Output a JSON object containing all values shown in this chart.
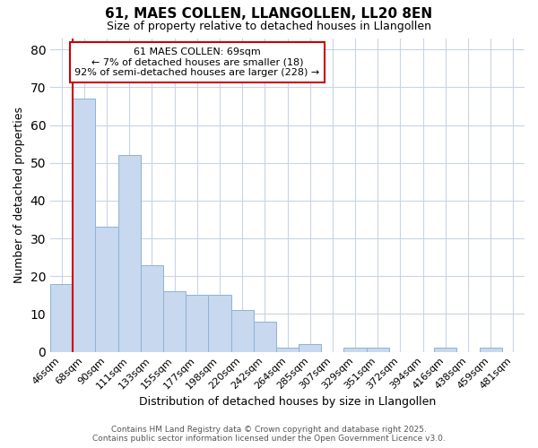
{
  "title": "61, MAES COLLEN, LLANGOLLEN, LL20 8EN",
  "subtitle": "Size of property relative to detached houses in Llangollen",
  "xlabel": "Distribution of detached houses by size in Llangollen",
  "ylabel": "Number of detached properties",
  "bar_color": "#c8d8ee",
  "bar_edge_color": "#8ab4d8",
  "background_color": "#ffffff",
  "grid_color": "#c8d4e8",
  "annotation_box_color": "#cc0000",
  "vline_color": "#cc0000",
  "categories": [
    "46sqm",
    "68sqm",
    "90sqm",
    "111sqm",
    "133sqm",
    "155sqm",
    "177sqm",
    "198sqm",
    "220sqm",
    "242sqm",
    "264sqm",
    "285sqm",
    "307sqm",
    "329sqm",
    "351sqm",
    "372sqm",
    "394sqm",
    "416sqm",
    "438sqm",
    "459sqm",
    "481sqm"
  ],
  "values": [
    18,
    67,
    33,
    52,
    23,
    16,
    15,
    15,
    11,
    8,
    1,
    2,
    0,
    1,
    1,
    0,
    0,
    1,
    0,
    1,
    0
  ],
  "ylim": [
    0,
    83
  ],
  "yticks": [
    0,
    10,
    20,
    30,
    40,
    50,
    60,
    70,
    80
  ],
  "annotation_text": "61 MAES COLLEN: 69sqm\n← 7% of detached houses are smaller (18)\n92% of semi-detached houses are larger (228) →",
  "vline_x_pos": 1.0,
  "footer_line1": "Contains HM Land Registry data © Crown copyright and database right 2025.",
  "footer_line2": "Contains public sector information licensed under the Open Government Licence v3.0."
}
